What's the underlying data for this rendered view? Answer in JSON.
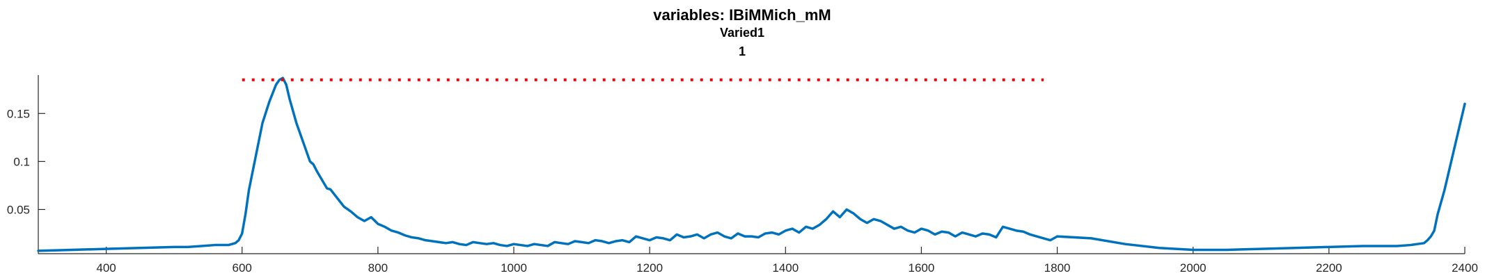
{
  "chart_data": {
    "type": "line",
    "title_lines": [
      "variables: IBiMMich_mM",
      "Varied1",
      "1"
    ],
    "xlabel": "",
    "ylabel": "",
    "xlim": [
      300,
      2400
    ],
    "ylim": [
      0.004,
      0.19
    ],
    "x_ticks": [
      400,
      600,
      800,
      1000,
      1200,
      1400,
      1600,
      1800,
      2000,
      2200,
      2400
    ],
    "x_tick_labels": [
      "400",
      "600",
      "800",
      "1000",
      "1200",
      "1400",
      "1600",
      "1800",
      "2000",
      "2200",
      "2400"
    ],
    "y_ticks": [
      0.05,
      0.1,
      0.15
    ],
    "y_tick_labels": [
      "0.05",
      "0.1",
      "0.15"
    ],
    "grid": false,
    "legend": "none",
    "series": [
      {
        "color": "#0072BD",
        "x": [
          300,
          350,
          400,
          450,
          500,
          520,
          540,
          560,
          580,
          590,
          595,
          600,
          605,
          610,
          620,
          630,
          640,
          650,
          655,
          660,
          665,
          670,
          680,
          690,
          700,
          705,
          710,
          720,
          725,
          730,
          740,
          750,
          760,
          770,
          780,
          790,
          800,
          810,
          820,
          830,
          840,
          850,
          860,
          870,
          880,
          890,
          900,
          910,
          920,
          930,
          940,
          950,
          960,
          970,
          980,
          990,
          1000,
          1010,
          1020,
          1030,
          1040,
          1050,
          1060,
          1070,
          1080,
          1090,
          1100,
          1110,
          1120,
          1130,
          1140,
          1150,
          1160,
          1170,
          1180,
          1190,
          1200,
          1210,
          1220,
          1230,
          1240,
          1250,
          1260,
          1270,
          1280,
          1290,
          1300,
          1310,
          1320,
          1330,
          1340,
          1350,
          1360,
          1370,
          1380,
          1390,
          1400,
          1410,
          1420,
          1430,
          1440,
          1450,
          1460,
          1470,
          1480,
          1490,
          1500,
          1510,
          1520,
          1530,
          1540,
          1550,
          1560,
          1570,
          1580,
          1590,
          1600,
          1610,
          1620,
          1630,
          1640,
          1650,
          1660,
          1670,
          1680,
          1690,
          1700,
          1710,
          1720,
          1730,
          1740,
          1750,
          1760,
          1770,
          1780,
          1790,
          1800,
          1850,
          1900,
          1950,
          2000,
          2050,
          2100,
          2150,
          2200,
          2250,
          2300,
          2320,
          2330,
          2340,
          2345,
          2350,
          2355,
          2360,
          2370,
          2380,
          2390,
          2400
        ],
        "y": [
          0.007,
          0.008,
          0.009,
          0.01,
          0.011,
          0.011,
          0.012,
          0.013,
          0.013,
          0.015,
          0.018,
          0.025,
          0.045,
          0.07,
          0.105,
          0.14,
          0.162,
          0.18,
          0.185,
          0.187,
          0.18,
          0.165,
          0.14,
          0.12,
          0.1,
          0.097,
          0.09,
          0.078,
          0.072,
          0.071,
          0.062,
          0.053,
          0.048,
          0.042,
          0.038,
          0.042,
          0.035,
          0.032,
          0.028,
          0.026,
          0.023,
          0.021,
          0.02,
          0.018,
          0.017,
          0.016,
          0.015,
          0.016,
          0.014,
          0.013,
          0.016,
          0.015,
          0.014,
          0.015,
          0.013,
          0.012,
          0.014,
          0.013,
          0.012,
          0.014,
          0.013,
          0.012,
          0.016,
          0.015,
          0.014,
          0.017,
          0.016,
          0.015,
          0.018,
          0.017,
          0.015,
          0.017,
          0.018,
          0.016,
          0.022,
          0.02,
          0.018,
          0.021,
          0.02,
          0.018,
          0.024,
          0.021,
          0.022,
          0.024,
          0.02,
          0.024,
          0.026,
          0.022,
          0.02,
          0.025,
          0.022,
          0.022,
          0.021,
          0.025,
          0.026,
          0.024,
          0.028,
          0.03,
          0.026,
          0.032,
          0.03,
          0.034,
          0.04,
          0.048,
          0.042,
          0.05,
          0.046,
          0.04,
          0.036,
          0.04,
          0.038,
          0.034,
          0.03,
          0.032,
          0.028,
          0.026,
          0.03,
          0.028,
          0.024,
          0.027,
          0.026,
          0.022,
          0.026,
          0.024,
          0.022,
          0.025,
          0.024,
          0.021,
          0.032,
          0.03,
          0.028,
          0.027,
          0.024,
          0.022,
          0.02,
          0.018,
          0.022,
          0.02,
          0.014,
          0.01,
          0.008,
          0.008,
          0.009,
          0.01,
          0.011,
          0.012,
          0.012,
          0.013,
          0.014,
          0.015,
          0.018,
          0.022,
          0.028,
          0.045,
          0.07,
          0.1,
          0.13,
          0.16
        ]
      },
      {
        "color": "#FF0000",
        "style": "dotted",
        "x": [
          600,
          1780
        ],
        "y": [
          0.185,
          0.185
        ]
      }
    ]
  }
}
